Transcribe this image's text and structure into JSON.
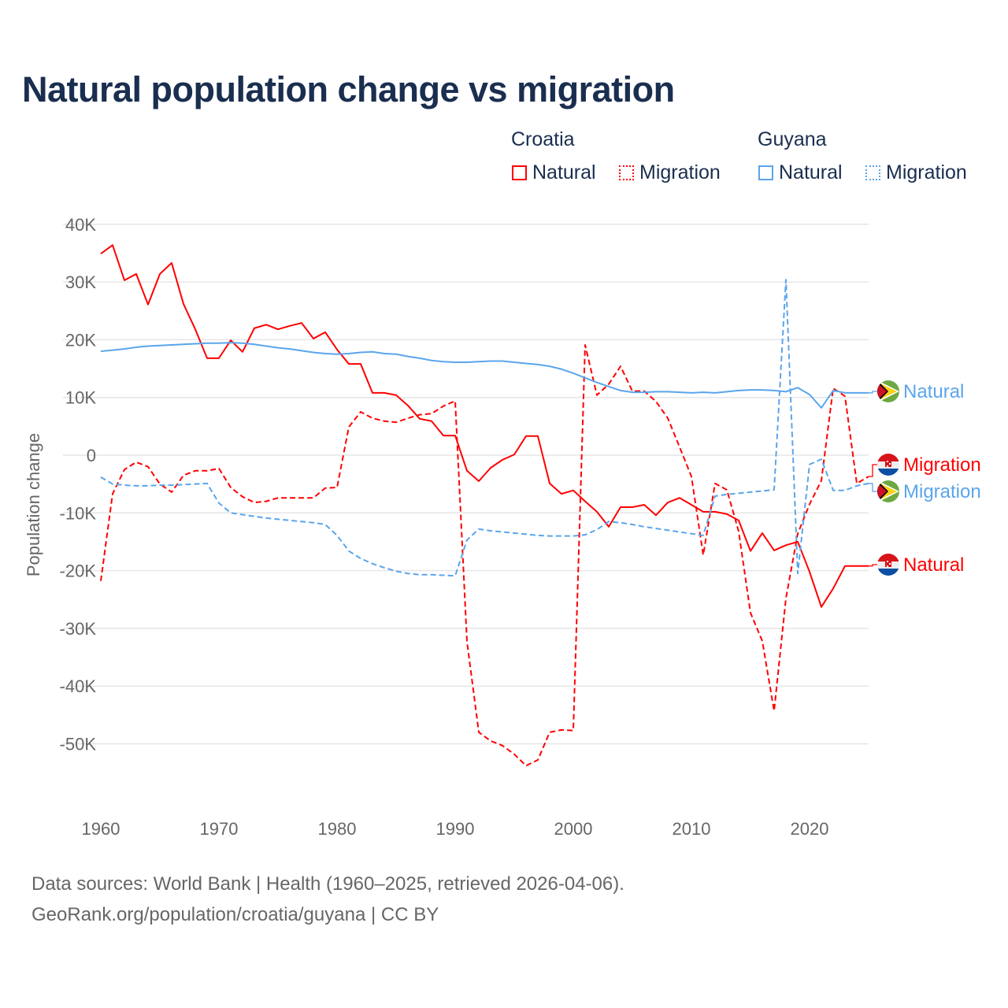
{
  "title": "Natural population change vs migration",
  "legend": {
    "groups": [
      {
        "country": "Croatia",
        "items": [
          "Natural",
          "Migration"
        ],
        "color": "#ff0000"
      },
      {
        "country": "Guyana",
        "items": [
          "Natural",
          "Migration"
        ],
        "color": "#5aa5ec"
      }
    ]
  },
  "footer": {
    "line1": "Data sources: World Bank | Health (1960–2025, retrieved 2026-04-06).",
    "line2": "GeoRank.org/population/croatia/guyana | CC BY"
  },
  "chart_data": {
    "type": "line",
    "title": "Natural population change vs migration",
    "xlabel": "",
    "ylabel": "Population change",
    "xlim": [
      1960,
      2025
    ],
    "ylim": [
      -60000,
      40000
    ],
    "x_ticks": [
      "1960",
      "1970",
      "1980",
      "1990",
      "2000",
      "2010",
      "2020"
    ],
    "y_ticks": [
      {
        "v": 40,
        "l": "40K"
      },
      {
        "v": 30,
        "l": "30K"
      },
      {
        "v": 20,
        "l": "20K"
      },
      {
        "v": 10,
        "l": "10K"
      },
      {
        "v": 0,
        "l": "0"
      },
      {
        "v": -10,
        "l": "-10K"
      },
      {
        "v": -20,
        "l": "-20K"
      },
      {
        "v": -30,
        "l": "-30K"
      },
      {
        "v": -40,
        "l": "-40K"
      },
      {
        "v": -50,
        "l": "-50K"
      }
    ],
    "units": "thousands",
    "grid": true,
    "legend_position": "top-right",
    "x_start": 1960,
    "series": [
      {
        "name": "Croatia Natural",
        "label": "Natural",
        "color": "#ff0000",
        "dash": false,
        "values": [
          34.9,
          36.4,
          30.3,
          31.4,
          26.1,
          31.4,
          33.3,
          26.2,
          21.8,
          16.8,
          16.8,
          19.9,
          17.9,
          22.0,
          22.6,
          21.8,
          22.4,
          22.9,
          20.2,
          21.3,
          18.3,
          15.8,
          15.8,
          10.8,
          10.8,
          10.4,
          8.6,
          6.3,
          5.9,
          3.4,
          3.4,
          -2.7,
          -4.5,
          -2.2,
          -0.8,
          0.1,
          3.3,
          3.3,
          -4.9,
          -6.7,
          -6.1,
          -8.0,
          -9.8,
          -12.4,
          -9.0,
          -9.0,
          -8.6,
          -10.4,
          -8.2,
          -7.4,
          -8.6,
          -9.8,
          -9.8,
          -10.2,
          -11.3,
          -16.6,
          -13.5,
          -16.5,
          -15.6,
          -15.0,
          -20.2,
          -26.3,
          -23.1,
          -19.2,
          -19.2,
          -19.2
        ]
      },
      {
        "name": "Croatia Migration",
        "label": "Migration",
        "color": "#ff0000",
        "dash": true,
        "values": [
          -21.8,
          -6.7,
          -2.5,
          -1.2,
          -2.0,
          -5.0,
          -6.4,
          -3.5,
          -2.7,
          -2.7,
          -2.3,
          -5.6,
          -7.2,
          -8.2,
          -8.0,
          -7.4,
          -7.4,
          -7.4,
          -7.4,
          -5.7,
          -5.6,
          4.9,
          7.5,
          6.4,
          5.9,
          5.7,
          6.4,
          7.0,
          7.2,
          8.5,
          9.4,
          -32.3,
          -48.0,
          -49.5,
          -50.3,
          -51.8,
          -53.8,
          -52.8,
          -48.0,
          -47.6,
          -47.7,
          19.1,
          10.4,
          12.3,
          15.4,
          11.1,
          11.1,
          9.3,
          6.4,
          1.4,
          -3.7,
          -17.3,
          -4.9,
          -6.0,
          -13.2,
          -27.3,
          -32.2,
          -44.3,
          -24.8,
          -13.6,
          -8.5,
          -4.4,
          11.6,
          10.2,
          -4.9,
          -3.7
        ]
      },
      {
        "name": "Guyana Natural",
        "label": "Natural",
        "color": "#5aa5ec",
        "dash": false,
        "values": [
          18.0,
          18.2,
          18.4,
          18.7,
          18.9,
          19.0,
          19.1,
          19.2,
          19.3,
          19.4,
          19.4,
          19.5,
          19.4,
          19.2,
          18.9,
          18.6,
          18.4,
          18.1,
          17.8,
          17.6,
          17.5,
          17.6,
          17.8,
          17.9,
          17.6,
          17.5,
          17.1,
          16.8,
          16.4,
          16.2,
          16.1,
          16.1,
          16.2,
          16.3,
          16.3,
          16.1,
          15.9,
          15.7,
          15.4,
          14.9,
          14.2,
          13.4,
          12.6,
          11.9,
          11.2,
          10.9,
          10.9,
          11.0,
          11.0,
          10.9,
          10.8,
          10.9,
          10.8,
          11.0,
          11.2,
          11.3,
          11.3,
          11.2,
          11.0,
          11.7,
          10.5,
          8.2,
          11.2,
          10.8,
          10.8,
          10.8
        ]
      },
      {
        "name": "Guyana Migration",
        "label": "Migration",
        "color": "#5aa5ec",
        "dash": true,
        "values": [
          -3.8,
          -5.0,
          -5.2,
          -5.3,
          -5.3,
          -5.2,
          -5.2,
          -5.1,
          -5.0,
          -4.9,
          -8.3,
          -10.0,
          -10.3,
          -10.6,
          -10.9,
          -11.1,
          -11.3,
          -11.5,
          -11.7,
          -12.0,
          -13.9,
          -16.6,
          -17.9,
          -18.8,
          -19.5,
          -20.1,
          -20.5,
          -20.7,
          -20.7,
          -20.8,
          -20.9,
          -14.7,
          -12.8,
          -13.1,
          -13.3,
          -13.5,
          -13.7,
          -13.9,
          -14.0,
          -14.0,
          -14.0,
          -13.8,
          -12.9,
          -11.5,
          -11.7,
          -12.0,
          -12.4,
          -12.7,
          -13.0,
          -13.3,
          -13.6,
          -13.9,
          -7.1,
          -6.8,
          -6.6,
          -6.4,
          -6.2,
          -6.0,
          30.4,
          -20.5,
          -1.6,
          -0.7,
          -6.1,
          -6.1,
          -5.3,
          -4.9
        ]
      }
    ]
  }
}
